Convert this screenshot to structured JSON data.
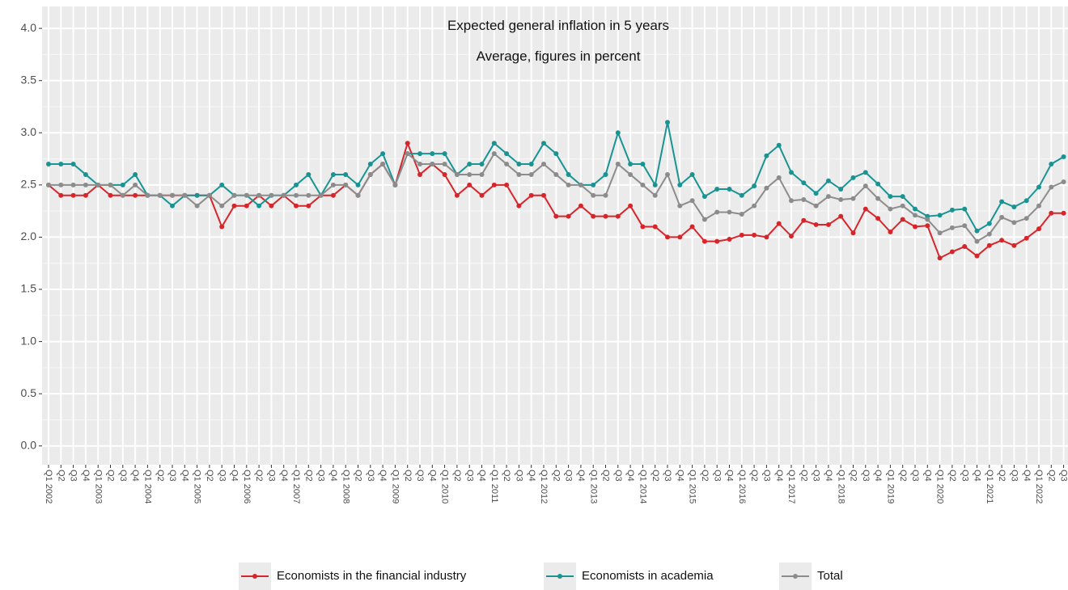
{
  "chart_data": {
    "type": "line",
    "title": "Expected general inflation in 5 years",
    "subtitle": "Average, figures in percent",
    "categories": [
      "Q1 2002",
      "Q2",
      "Q3",
      "Q4",
      "Q1 2003",
      "Q2",
      "Q3",
      "Q4",
      "Q1 2004",
      "Q2",
      "Q3",
      "Q4",
      "Q1 2005",
      "Q2",
      "Q3",
      "Q4",
      "Q1 2006",
      "Q2",
      "Q3",
      "Q4",
      "Q1 2007",
      "Q2",
      "Q3",
      "Q4",
      "Q1 2008",
      "Q2",
      "Q3",
      "Q4",
      "Q1 2009",
      "Q2",
      "Q3",
      "Q4",
      "Q1 2010",
      "Q2",
      "Q3",
      "Q4",
      "Q1 2011",
      "Q2",
      "Q3",
      "Q4",
      "Q1 2012",
      "Q2",
      "Q3",
      "Q4",
      "Q1 2013",
      "Q2",
      "Q3",
      "Q4",
      "Q1 2014",
      "Q2",
      "Q3",
      "Q4",
      "Q1 2015",
      "Q2",
      "Q3",
      "Q4",
      "Q1 2016",
      "Q2",
      "Q3",
      "Q4",
      "Q1 2017",
      "Q2",
      "Q3",
      "Q4",
      "Q1 2018",
      "Q2",
      "Q3",
      "Q4",
      "Q1 2019",
      "Q2",
      "Q3",
      "Q4",
      "Q1 2020",
      "Q2",
      "Q3",
      "Q4",
      "Q1 2021",
      "Q2",
      "Q3",
      "Q4",
      "Q1 2022",
      "Q2",
      "Q3"
    ],
    "series": [
      {
        "name": "Economists in the financial industry",
        "color": "#d7262b",
        "values": [
          2.5,
          2.4,
          2.4,
          2.4,
          2.5,
          2.4,
          2.4,
          2.4,
          2.4,
          2.4,
          2.4,
          2.4,
          2.4,
          2.4,
          2.1,
          2.3,
          2.3,
          2.4,
          2.3,
          2.4,
          2.3,
          2.3,
          2.4,
          2.4,
          2.5,
          2.4,
          2.6,
          2.7,
          2.5,
          2.9,
          2.6,
          2.7,
          2.6,
          2.4,
          2.5,
          2.4,
          2.5,
          2.5,
          2.3,
          2.4,
          2.4,
          2.2,
          2.2,
          2.3,
          2.2,
          2.2,
          2.2,
          2.3,
          2.1,
          2.1,
          2.0,
          2.0,
          2.1,
          1.96,
          1.96,
          1.98,
          2.02,
          2.02,
          2.0,
          2.13,
          2.01,
          2.16,
          2.12,
          2.12,
          2.2,
          2.04,
          2.27,
          2.18,
          2.05,
          2.17,
          2.1,
          2.11,
          1.8,
          1.86,
          1.91,
          1.82,
          1.92,
          1.97,
          1.92,
          1.99,
          2.08,
          2.23,
          2.23
        ]
      },
      {
        "name": "Economists in academia",
        "color": "#1a9393",
        "values": [
          2.7,
          2.7,
          2.7,
          2.6,
          2.5,
          2.5,
          2.5,
          2.6,
          2.4,
          2.4,
          2.3,
          2.4,
          2.4,
          2.4,
          2.5,
          2.4,
          2.4,
          2.3,
          2.4,
          2.4,
          2.5,
          2.6,
          2.4,
          2.6,
          2.6,
          2.5,
          2.7,
          2.8,
          2.5,
          2.8,
          2.8,
          2.8,
          2.8,
          2.6,
          2.7,
          2.7,
          2.9,
          2.8,
          2.7,
          2.7,
          2.9,
          2.8,
          2.6,
          2.5,
          2.5,
          2.6,
          3.0,
          2.7,
          2.7,
          2.5,
          3.1,
          2.5,
          2.6,
          2.39,
          2.46,
          2.46,
          2.4,
          2.49,
          2.78,
          2.88,
          2.62,
          2.52,
          2.42,
          2.54,
          2.46,
          2.57,
          2.62,
          2.51,
          2.39,
          2.39,
          2.27,
          2.2,
          2.21,
          2.26,
          2.27,
          2.06,
          2.13,
          2.34,
          2.29,
          2.35,
          2.48,
          2.7,
          2.77
        ]
      },
      {
        "name": "Total",
        "color": "#8c8c8c",
        "values": [
          2.5,
          2.5,
          2.5,
          2.5,
          2.5,
          2.5,
          2.4,
          2.5,
          2.4,
          2.4,
          2.4,
          2.4,
          2.3,
          2.4,
          2.3,
          2.4,
          2.4,
          2.4,
          2.4,
          2.4,
          2.4,
          2.4,
          2.4,
          2.5,
          2.5,
          2.4,
          2.6,
          2.7,
          2.5,
          2.8,
          2.7,
          2.7,
          2.7,
          2.6,
          2.6,
          2.6,
          2.8,
          2.7,
          2.6,
          2.6,
          2.7,
          2.6,
          2.5,
          2.5,
          2.4,
          2.4,
          2.7,
          2.6,
          2.5,
          2.4,
          2.6,
          2.3,
          2.35,
          2.17,
          2.24,
          2.24,
          2.22,
          2.3,
          2.47,
          2.57,
          2.35,
          2.36,
          2.3,
          2.39,
          2.36,
          2.37,
          2.49,
          2.37,
          2.27,
          2.3,
          2.21,
          2.17,
          2.04,
          2.09,
          2.11,
          1.96,
          2.03,
          2.19,
          2.14,
          2.18,
          2.3,
          2.48,
          2.53
        ]
      }
    ],
    "ylim": [
      -0.18,
      4.21
    ],
    "yticks": [
      {
        "value": 0,
        "label": "0.0"
      },
      0.5,
      {
        "value": 1,
        "label": "1.0"
      },
      1.5,
      {
        "value": 2,
        "label": "2.0"
      },
      2.5,
      {
        "value": 3,
        "label": "3.0"
      },
      3.5,
      {
        "value": 4,
        "label": "4.0"
      }
    ],
    "grid": true,
    "legend": "bottom"
  }
}
